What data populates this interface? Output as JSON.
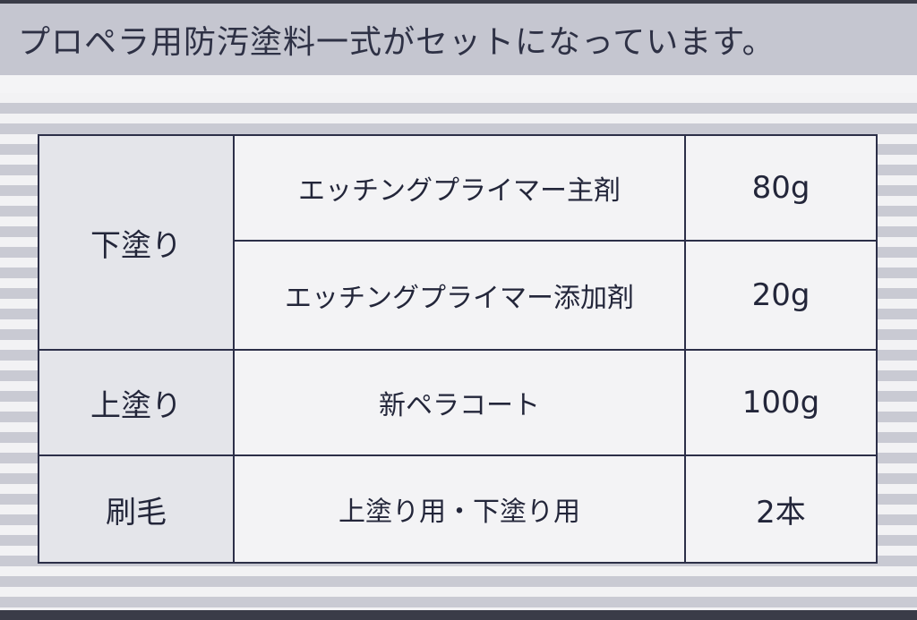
{
  "headline": "プロペラ用防汚塗料一式がセットになっています。",
  "table": {
    "rows": [
      {
        "category": "下塗り",
        "item": "エッチングプライマー主剤",
        "quantity": "80g"
      },
      {
        "item": "エッチングプライマー添加剤",
        "quantity": "20g"
      },
      {
        "category": "上塗り",
        "item": "新ペラコート",
        "quantity": "100g"
      },
      {
        "category": "刷毛",
        "item": "上塗り用・下塗り用",
        "quantity": "2本"
      }
    ]
  }
}
